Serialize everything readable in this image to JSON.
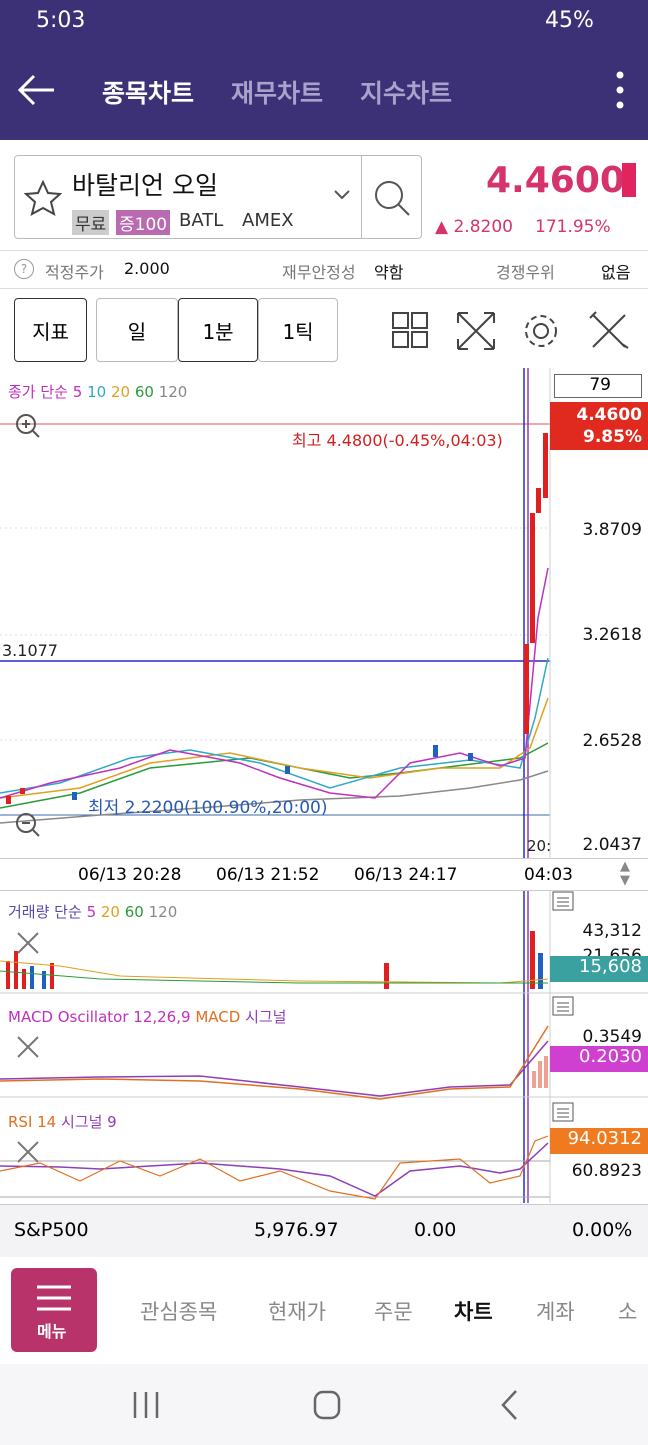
{
  "status": {
    "time": "5:03",
    "battery": "45%"
  },
  "tabs": [
    "종목차트",
    "재무차트",
    "지수차트"
  ],
  "stock": {
    "name": "바탈리언 오일",
    "tags": [
      "무료",
      "증100",
      "BATL",
      "AMEX"
    ],
    "price": "4.4600",
    "change": "2.8200",
    "change_pct": "171.95%"
  },
  "info": [
    {
      "label": "적정주가",
      "value": "2.000"
    },
    {
      "label": "재무안정성",
      "value": "약함"
    },
    {
      "label": "경쟁우위",
      "value": "없음"
    }
  ],
  "buttons": [
    "지표",
    "일",
    "1분",
    "1틱"
  ],
  "price_chart": {
    "legend": [
      "종가 단순",
      "5",
      "10",
      "20",
      "60",
      "120"
    ],
    "count": "79",
    "current": "4.4600",
    "current_pct": "9.85%",
    "high": "최고 4.4800(-0.45%,04:03)",
    "low": "최저 2.2200(100.90%,20:00)",
    "line_label": "3.1077",
    "y_labels": [
      "3.8709",
      "3.2618",
      "2.6528",
      "2.0437"
    ],
    "cursor_label": "20:",
    "x_labels": [
      "06/13 20:28",
      "06/13 21:52",
      "06/13 24:17",
      "04:03"
    ]
  },
  "volume": {
    "legend": [
      "거래량 단순",
      "5",
      "20",
      "60",
      "120"
    ],
    "y_labels": [
      "43,312",
      "21,656"
    ],
    "current": "15,608"
  },
  "macd": {
    "legend": [
      "MACD Oscillator 12,26,9",
      "MACD",
      "시그널"
    ],
    "y_labels": [
      "0.3549"
    ],
    "current": "0.2030"
  },
  "rsi": {
    "legend": [
      "RSI 14",
      "시그널 9"
    ],
    "y_labels": [
      "60.8923"
    ],
    "current": "94.0312"
  },
  "index": {
    "name": "S&P500",
    "value": "5,976.97",
    "change": "0.00",
    "change_pct": "0.00%"
  },
  "nav": {
    "menu": "메뉴",
    "items": [
      "관심종목",
      "현재가",
      "주문",
      "차트",
      "계좌",
      "소"
    ]
  }
}
